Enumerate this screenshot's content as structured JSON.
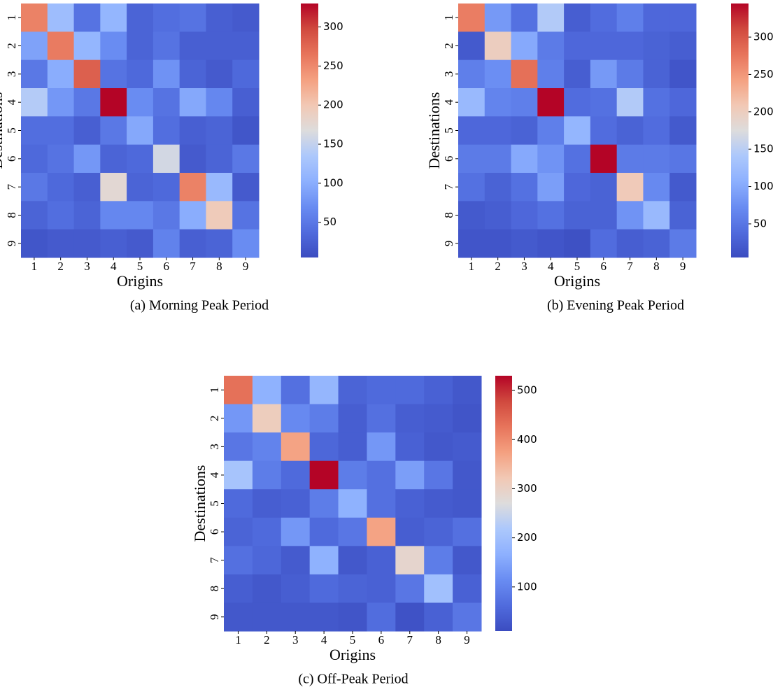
{
  "chart_data": [
    {
      "type": "heatmap",
      "caption": "(a) Morning Peak Period",
      "xlabel": "Origins",
      "ylabel": "Destinations",
      "x_categories": [
        "1",
        "2",
        "3",
        "4",
        "5",
        "6",
        "7",
        "8",
        "9"
      ],
      "y_categories": [
        "1",
        "2",
        "3",
        "4",
        "5",
        "6",
        "7",
        "8",
        "9"
      ],
      "colormap": "coolwarm",
      "clim": [
        5,
        330
      ],
      "cticks": [
        50,
        100,
        150,
        200,
        250,
        300
      ],
      "values": [
        [
          255,
          120,
          45,
          110,
          30,
          40,
          45,
          25,
          20
        ],
        [
          90,
          260,
          110,
          70,
          30,
          45,
          25,
          25,
          25
        ],
        [
          50,
          100,
          280,
          45,
          35,
          75,
          30,
          20,
          35
        ],
        [
          140,
          80,
          50,
          330,
          70,
          45,
          95,
          65,
          25
        ],
        [
          40,
          40,
          25,
          50,
          95,
          40,
          25,
          30,
          15
        ],
        [
          35,
          45,
          80,
          30,
          35,
          160,
          20,
          30,
          50
        ],
        [
          50,
          35,
          25,
          175,
          30,
          35,
          255,
          115,
          20
        ],
        [
          30,
          40,
          30,
          65,
          65,
          50,
          100,
          195,
          45
        ],
        [
          15,
          20,
          20,
          25,
          20,
          60,
          25,
          30,
          70
        ]
      ]
    },
    {
      "type": "heatmap",
      "caption": "(b) Evening Peak Period",
      "xlabel": "Origins",
      "ylabel": "Destinations",
      "x_categories": [
        "1",
        "2",
        "3",
        "4",
        "5",
        "6",
        "7",
        "8",
        "9"
      ],
      "y_categories": [
        "1",
        "2",
        "3",
        "4",
        "5",
        "6",
        "7",
        "8",
        "9"
      ],
      "colormap": "coolwarm",
      "clim": [
        5,
        345
      ],
      "cticks": [
        50,
        100,
        150,
        200,
        250,
        300
      ],
      "values": [
        [
          270,
          85,
          45,
          145,
          25,
          40,
          60,
          35,
          35
        ],
        [
          20,
          200,
          100,
          55,
          35,
          35,
          35,
          30,
          25
        ],
        [
          60,
          75,
          280,
          60,
          25,
          85,
          55,
          30,
          15
        ],
        [
          120,
          65,
          60,
          345,
          40,
          45,
          145,
          45,
          35
        ],
        [
          35,
          35,
          30,
          60,
          115,
          40,
          30,
          40,
          20
        ],
        [
          55,
          55,
          100,
          80,
          45,
          345,
          55,
          55,
          50
        ],
        [
          45,
          30,
          45,
          90,
          35,
          30,
          205,
          70,
          20
        ],
        [
          20,
          25,
          35,
          45,
          30,
          30,
          80,
          120,
          30
        ],
        [
          15,
          15,
          20,
          15,
          10,
          40,
          25,
          30,
          55
        ]
      ]
    },
    {
      "type": "heatmap",
      "caption": "(c) Off-Peak Period",
      "xlabel": "Origins",
      "ylabel": "Destinations",
      "x_categories": [
        "1",
        "2",
        "3",
        "4",
        "5",
        "6",
        "7",
        "8",
        "9"
      ],
      "y_categories": [
        "1",
        "2",
        "3",
        "4",
        "5",
        "6",
        "7",
        "8",
        "9"
      ],
      "colormap": "coolwarm",
      "clim": [
        10,
        530
      ],
      "cticks": [
        100,
        200,
        300,
        400,
        500
      ],
      "values": [
        [
          430,
          170,
          70,
          180,
          50,
          60,
          60,
          45,
          30
        ],
        [
          130,
          310,
          110,
          90,
          40,
          70,
          40,
          35,
          25
        ],
        [
          80,
          100,
          370,
          55,
          40,
          130,
          45,
          30,
          35
        ],
        [
          210,
          90,
          60,
          530,
          90,
          70,
          140,
          80,
          30
        ],
        [
          60,
          40,
          45,
          90,
          170,
          70,
          45,
          35,
          30
        ],
        [
          50,
          60,
          130,
          60,
          80,
          370,
          40,
          50,
          70
        ],
        [
          70,
          55,
          35,
          170,
          30,
          45,
          290,
          90,
          30
        ],
        [
          40,
          30,
          40,
          60,
          50,
          45,
          80,
          200,
          45
        ],
        [
          30,
          30,
          30,
          30,
          25,
          65,
          20,
          45,
          80
        ]
      ]
    }
  ]
}
